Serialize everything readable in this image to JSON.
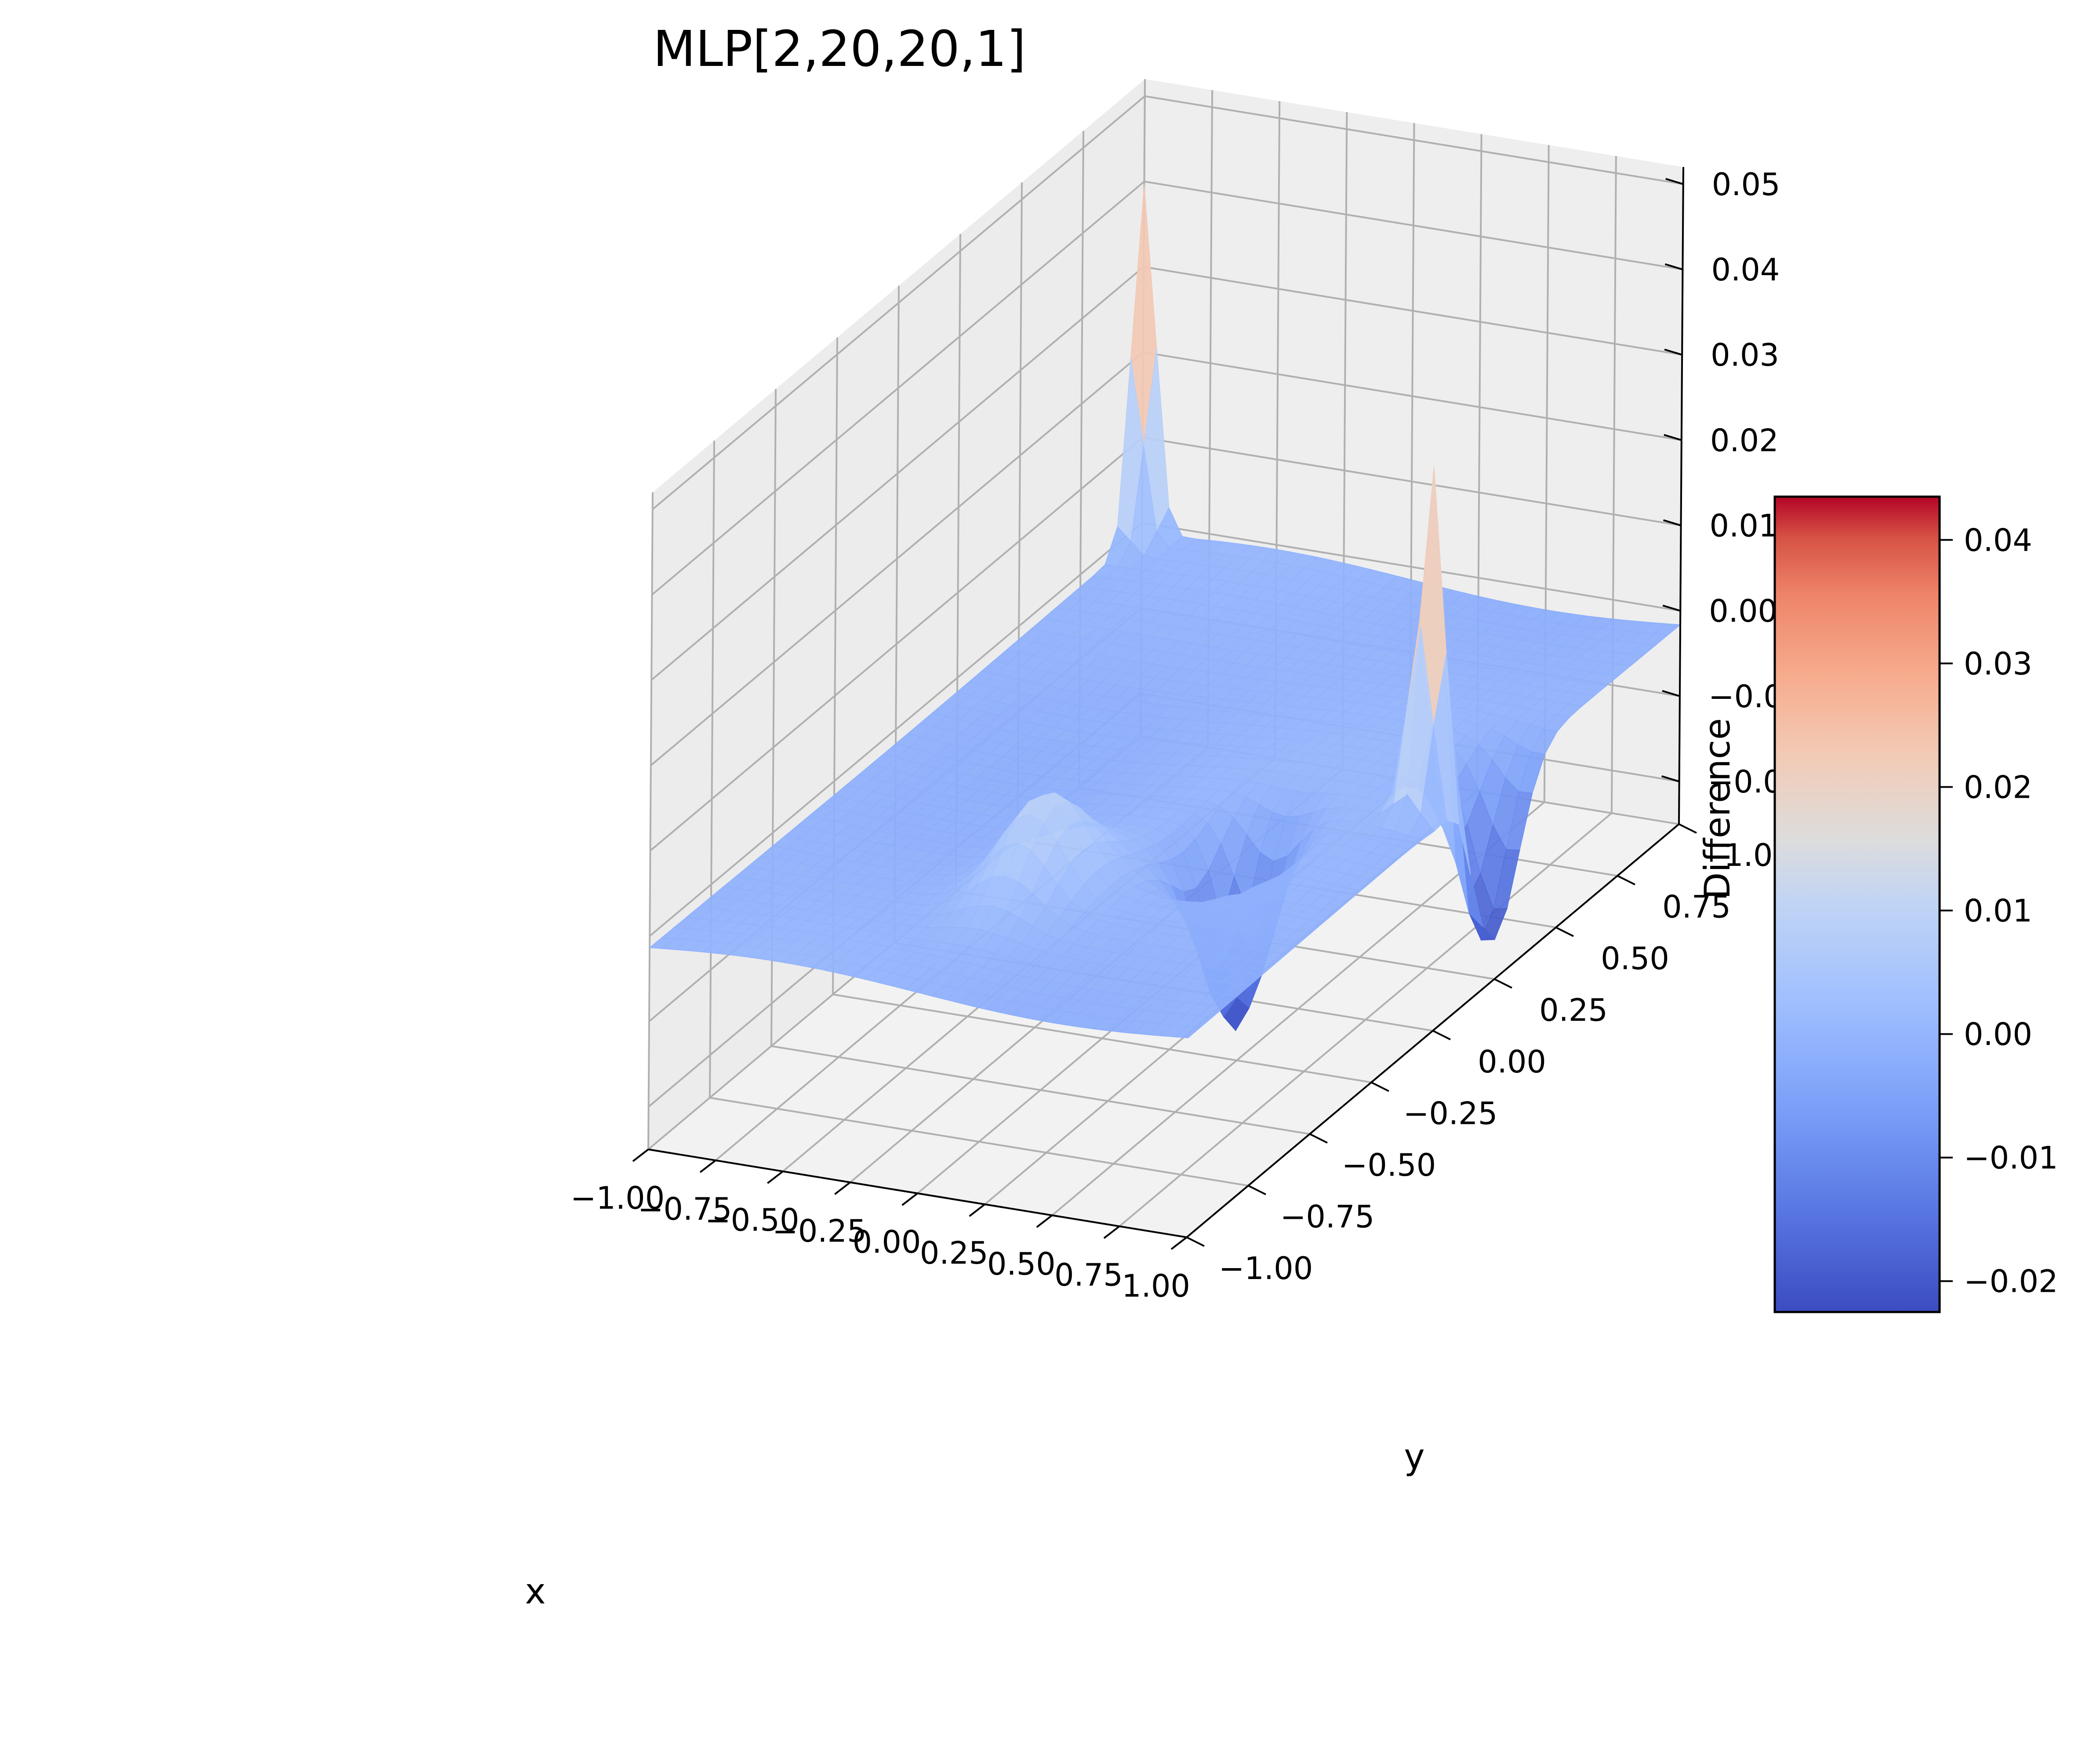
{
  "chart_data": {
    "type": "surface",
    "title": "MLP[2,20,20,1]",
    "xlabel": "x",
    "ylabel": "y",
    "zlabel": "Difference",
    "xlim": [
      -1.0,
      1.0
    ],
    "ylim": [
      -1.0,
      1.0
    ],
    "zlim": [
      -0.025,
      0.052
    ],
    "x_ticks": [
      "−1.00",
      "−0.75",
      "−0.50",
      "−0.25",
      "0.00",
      "0.25",
      "0.50",
      "0.75",
      "1.00"
    ],
    "y_ticks": [
      "−1.00",
      "−0.75",
      "−0.50",
      "−0.25",
      "0.00",
      "0.25",
      "0.50",
      "0.75",
      "1.00"
    ],
    "z_ticks": [
      "−0.02",
      "−0.01",
      "0.00",
      "0.01",
      "0.02",
      "0.03",
      "0.04",
      "0.05"
    ],
    "colormap": "coolwarm",
    "colorbar": {
      "range": [
        -0.0225,
        0.0435
      ],
      "ticks": [
        "−0.02",
        "−0.01",
        "0.00",
        "0.01",
        "0.02",
        "0.03",
        "0.04"
      ]
    },
    "grid": true,
    "features": [
      {
        "kind": "spike",
        "x": -1.0,
        "y": 1.0,
        "peak": 0.041
      },
      {
        "kind": "spike",
        "x": 0.9,
        "y": 0.1,
        "peak": 0.0435
      },
      {
        "kind": "well",
        "x": 0.45,
        "y": -0.2,
        "min": -0.0225
      },
      {
        "kind": "well",
        "x": 0.97,
        "y": 0.25,
        "min": -0.02
      },
      {
        "kind": "bump",
        "x": 0.0,
        "y": -0.5,
        "peak": 0.011
      }
    ],
    "baseline": 0.0
  },
  "colors": {
    "pane": "#f2f2f2",
    "grid": "#b0b0b0",
    "colormap_low": "#3b4cc0",
    "colormap_mid": "#dddddd",
    "colormap_high": "#b40426"
  }
}
